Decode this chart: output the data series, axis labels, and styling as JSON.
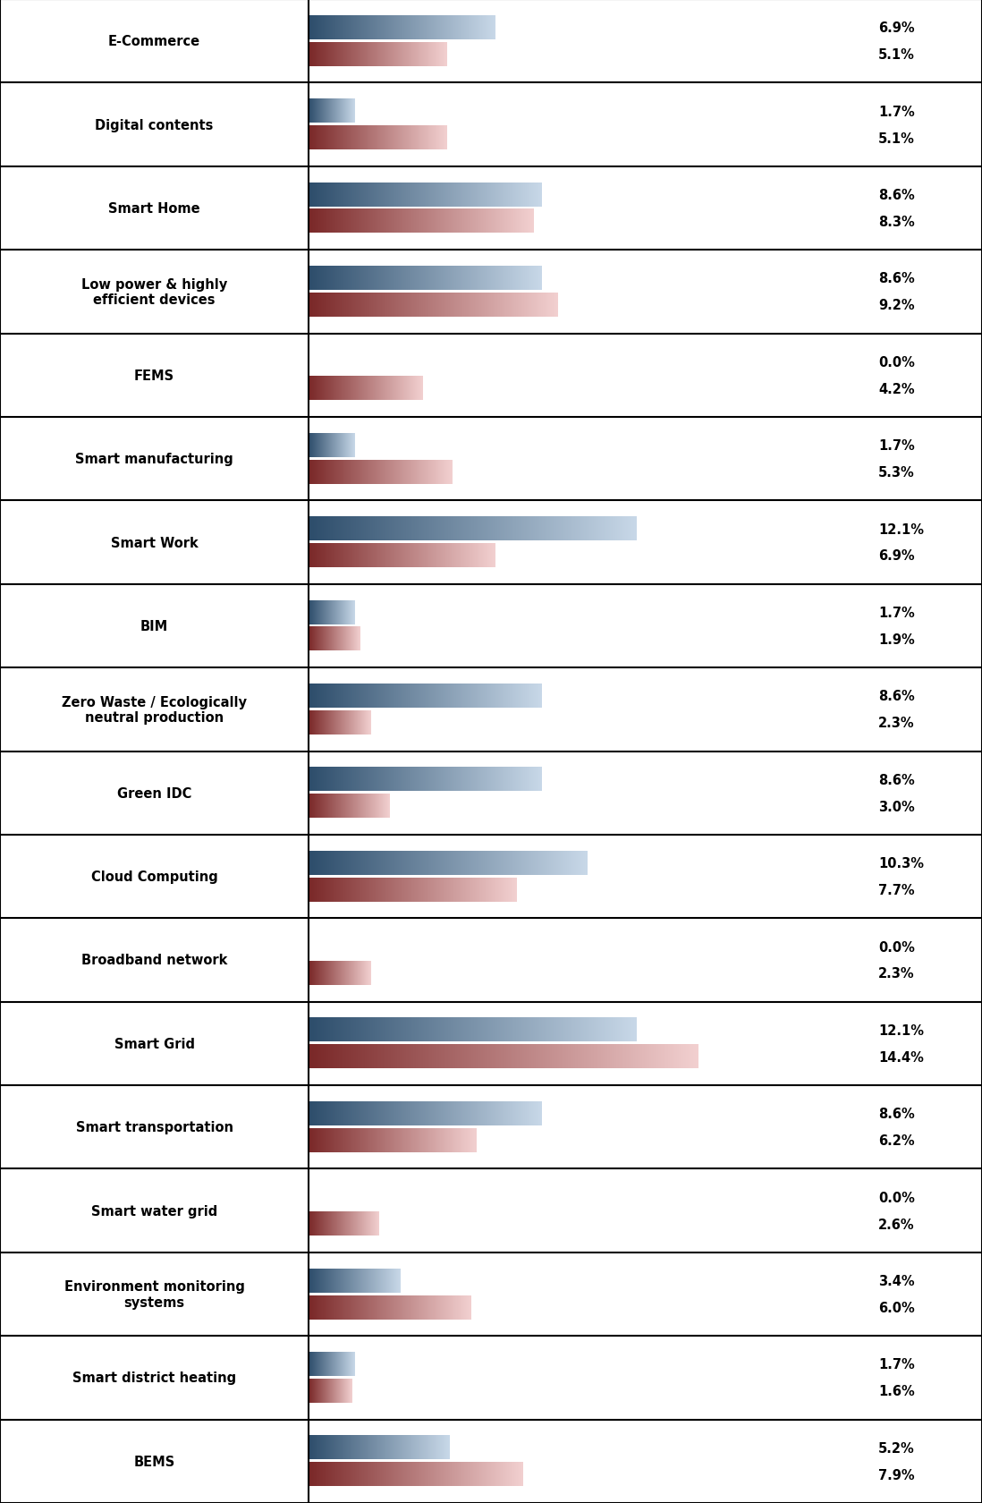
{
  "categories": [
    "E-Commerce",
    "Digital contents",
    "Smart Home",
    "Low power & highly\nefficient devices",
    "FEMS",
    "Smart manufacturing",
    "Smart Work",
    "BIM",
    "Zero Waste / Ecologically\nneutral production",
    "Green IDC",
    "Cloud Computing",
    "Broadband network",
    "Smart Grid",
    "Smart transportation",
    "Smart water grid",
    "Environment monitoring\nsystems",
    "Smart district heating",
    "BEMS"
  ],
  "finland_values": [
    6.9,
    1.7,
    8.6,
    8.6,
    0.0,
    1.7,
    12.1,
    1.7,
    8.6,
    8.6,
    10.3,
    0.0,
    12.1,
    8.6,
    0.0,
    3.4,
    1.7,
    5.2
  ],
  "korea_values": [
    5.1,
    5.1,
    8.3,
    9.2,
    4.2,
    5.3,
    6.9,
    1.9,
    2.3,
    3.0,
    7.7,
    2.3,
    14.4,
    6.2,
    2.6,
    6.0,
    1.6,
    7.9
  ],
  "finland_color_left": "#2d4d6b",
  "finland_color_right": "#c8d8e8",
  "korea_color_left": "#7a2828",
  "korea_color_right": "#f2d0d0",
  "background_color": "#ffffff",
  "label_color": "#000000",
  "max_value": 14.4,
  "label_fontsize": 10.5,
  "value_fontsize": 10.5,
  "fig_width": 10.98,
  "fig_height": 16.81,
  "dpi": 100
}
